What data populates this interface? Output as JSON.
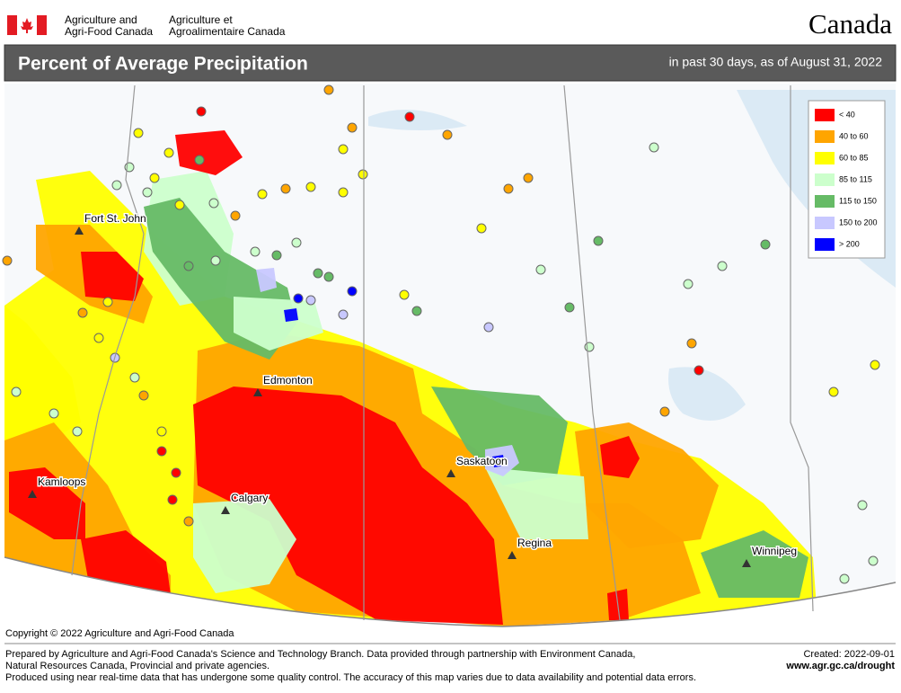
{
  "header": {
    "dept_en": {
      "line1": "Agriculture and",
      "line2": "Agri-Food Canada"
    },
    "dept_fr": {
      "line1": "Agriculture et",
      "line2": "Agroalimentaire Canada"
    },
    "wordmark": "Canada"
  },
  "title": "Percent of Average Precipitation",
  "subtitle": "in past 30 days, as of August 31, 2022",
  "legend": [
    {
      "label": "< 40",
      "color": "#ff0000"
    },
    {
      "label": "40 to 60",
      "color": "#ffa500"
    },
    {
      "label": "60 to 85",
      "color": "#ffff00"
    },
    {
      "label": "85 to 115",
      "color": "#ccffcc"
    },
    {
      "label": "115 to 150",
      "color": "#66bb66"
    },
    {
      "label": "150 to 200",
      "color": "#c8c8ff"
    },
    {
      "label": "> 200",
      "color": "#0000ff"
    }
  ],
  "cities": [
    {
      "name": "Fort St. John"
    },
    {
      "name": "Edmonton"
    },
    {
      "name": "Kamloops"
    },
    {
      "name": "Calgary"
    },
    {
      "name": "Saskatoon"
    },
    {
      "name": "Regina"
    },
    {
      "name": "Winnipeg"
    }
  ],
  "copyright": "Copyright © 2022 Agriculture and Agri-Food Canada",
  "footer": {
    "line1": "Prepared by Agriculture and Agri-Food Canada's Science and Technology Branch. Data provided through partnership with Environment Canada,",
    "line2": "Natural Resources Canada, Provincial and private agencies.",
    "line3": "Produced using near real-time data that has undergone some quality control. The accuracy of this map varies due to data availability and potential data errors.",
    "created": "Created: 2022-09-01",
    "url": "www.agr.gc.ca/drought"
  }
}
